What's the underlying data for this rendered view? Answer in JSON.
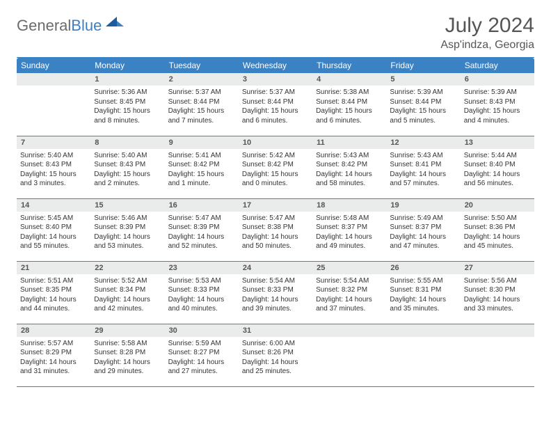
{
  "logo": {
    "general": "General",
    "blue": "Blue"
  },
  "title": "July 2024",
  "location": "Asp'indza, Georgia",
  "colors": {
    "header_bg": "#3b82c4",
    "header_text": "#ffffff",
    "daynum_bg": "#e9eceb",
    "daynum_text": "#555555",
    "cell_border": "#3b82c4",
    "body_text": "#333333",
    "title_text": "#555555",
    "logo_general": "#6b6b6b",
    "logo_blue": "#3b7fc4"
  },
  "weekdays": [
    "Sunday",
    "Monday",
    "Tuesday",
    "Wednesday",
    "Thursday",
    "Friday",
    "Saturday"
  ],
  "weeks": [
    [
      {
        "n": "",
        "lines": []
      },
      {
        "n": "1",
        "lines": [
          "Sunrise: 5:36 AM",
          "Sunset: 8:45 PM",
          "Daylight: 15 hours and 8 minutes."
        ]
      },
      {
        "n": "2",
        "lines": [
          "Sunrise: 5:37 AM",
          "Sunset: 8:44 PM",
          "Daylight: 15 hours and 7 minutes."
        ]
      },
      {
        "n": "3",
        "lines": [
          "Sunrise: 5:37 AM",
          "Sunset: 8:44 PM",
          "Daylight: 15 hours and 6 minutes."
        ]
      },
      {
        "n": "4",
        "lines": [
          "Sunrise: 5:38 AM",
          "Sunset: 8:44 PM",
          "Daylight: 15 hours and 6 minutes."
        ]
      },
      {
        "n": "5",
        "lines": [
          "Sunrise: 5:39 AM",
          "Sunset: 8:44 PM",
          "Daylight: 15 hours and 5 minutes."
        ]
      },
      {
        "n": "6",
        "lines": [
          "Sunrise: 5:39 AM",
          "Sunset: 8:43 PM",
          "Daylight: 15 hours and 4 minutes."
        ]
      }
    ],
    [
      {
        "n": "7",
        "lines": [
          "Sunrise: 5:40 AM",
          "Sunset: 8:43 PM",
          "Daylight: 15 hours and 3 minutes."
        ]
      },
      {
        "n": "8",
        "lines": [
          "Sunrise: 5:40 AM",
          "Sunset: 8:43 PM",
          "Daylight: 15 hours and 2 minutes."
        ]
      },
      {
        "n": "9",
        "lines": [
          "Sunrise: 5:41 AM",
          "Sunset: 8:42 PM",
          "Daylight: 15 hours and 1 minute."
        ]
      },
      {
        "n": "10",
        "lines": [
          "Sunrise: 5:42 AM",
          "Sunset: 8:42 PM",
          "Daylight: 15 hours and 0 minutes."
        ]
      },
      {
        "n": "11",
        "lines": [
          "Sunrise: 5:43 AM",
          "Sunset: 8:42 PM",
          "Daylight: 14 hours and 58 minutes."
        ]
      },
      {
        "n": "12",
        "lines": [
          "Sunrise: 5:43 AM",
          "Sunset: 8:41 PM",
          "Daylight: 14 hours and 57 minutes."
        ]
      },
      {
        "n": "13",
        "lines": [
          "Sunrise: 5:44 AM",
          "Sunset: 8:40 PM",
          "Daylight: 14 hours and 56 minutes."
        ]
      }
    ],
    [
      {
        "n": "14",
        "lines": [
          "Sunrise: 5:45 AM",
          "Sunset: 8:40 PM",
          "Daylight: 14 hours and 55 minutes."
        ]
      },
      {
        "n": "15",
        "lines": [
          "Sunrise: 5:46 AM",
          "Sunset: 8:39 PM",
          "Daylight: 14 hours and 53 minutes."
        ]
      },
      {
        "n": "16",
        "lines": [
          "Sunrise: 5:47 AM",
          "Sunset: 8:39 PM",
          "Daylight: 14 hours and 52 minutes."
        ]
      },
      {
        "n": "17",
        "lines": [
          "Sunrise: 5:47 AM",
          "Sunset: 8:38 PM",
          "Daylight: 14 hours and 50 minutes."
        ]
      },
      {
        "n": "18",
        "lines": [
          "Sunrise: 5:48 AM",
          "Sunset: 8:37 PM",
          "Daylight: 14 hours and 49 minutes."
        ]
      },
      {
        "n": "19",
        "lines": [
          "Sunrise: 5:49 AM",
          "Sunset: 8:37 PM",
          "Daylight: 14 hours and 47 minutes."
        ]
      },
      {
        "n": "20",
        "lines": [
          "Sunrise: 5:50 AM",
          "Sunset: 8:36 PM",
          "Daylight: 14 hours and 45 minutes."
        ]
      }
    ],
    [
      {
        "n": "21",
        "lines": [
          "Sunrise: 5:51 AM",
          "Sunset: 8:35 PM",
          "Daylight: 14 hours and 44 minutes."
        ]
      },
      {
        "n": "22",
        "lines": [
          "Sunrise: 5:52 AM",
          "Sunset: 8:34 PM",
          "Daylight: 14 hours and 42 minutes."
        ]
      },
      {
        "n": "23",
        "lines": [
          "Sunrise: 5:53 AM",
          "Sunset: 8:33 PM",
          "Daylight: 14 hours and 40 minutes."
        ]
      },
      {
        "n": "24",
        "lines": [
          "Sunrise: 5:54 AM",
          "Sunset: 8:33 PM",
          "Daylight: 14 hours and 39 minutes."
        ]
      },
      {
        "n": "25",
        "lines": [
          "Sunrise: 5:54 AM",
          "Sunset: 8:32 PM",
          "Daylight: 14 hours and 37 minutes."
        ]
      },
      {
        "n": "26",
        "lines": [
          "Sunrise: 5:55 AM",
          "Sunset: 8:31 PM",
          "Daylight: 14 hours and 35 minutes."
        ]
      },
      {
        "n": "27",
        "lines": [
          "Sunrise: 5:56 AM",
          "Sunset: 8:30 PM",
          "Daylight: 14 hours and 33 minutes."
        ]
      }
    ],
    [
      {
        "n": "28",
        "lines": [
          "Sunrise: 5:57 AM",
          "Sunset: 8:29 PM",
          "Daylight: 14 hours and 31 minutes."
        ]
      },
      {
        "n": "29",
        "lines": [
          "Sunrise: 5:58 AM",
          "Sunset: 8:28 PM",
          "Daylight: 14 hours and 29 minutes."
        ]
      },
      {
        "n": "30",
        "lines": [
          "Sunrise: 5:59 AM",
          "Sunset: 8:27 PM",
          "Daylight: 14 hours and 27 minutes."
        ]
      },
      {
        "n": "31",
        "lines": [
          "Sunrise: 6:00 AM",
          "Sunset: 8:26 PM",
          "Daylight: 14 hours and 25 minutes."
        ]
      },
      {
        "n": "",
        "lines": []
      },
      {
        "n": "",
        "lines": []
      },
      {
        "n": "",
        "lines": []
      }
    ]
  ]
}
